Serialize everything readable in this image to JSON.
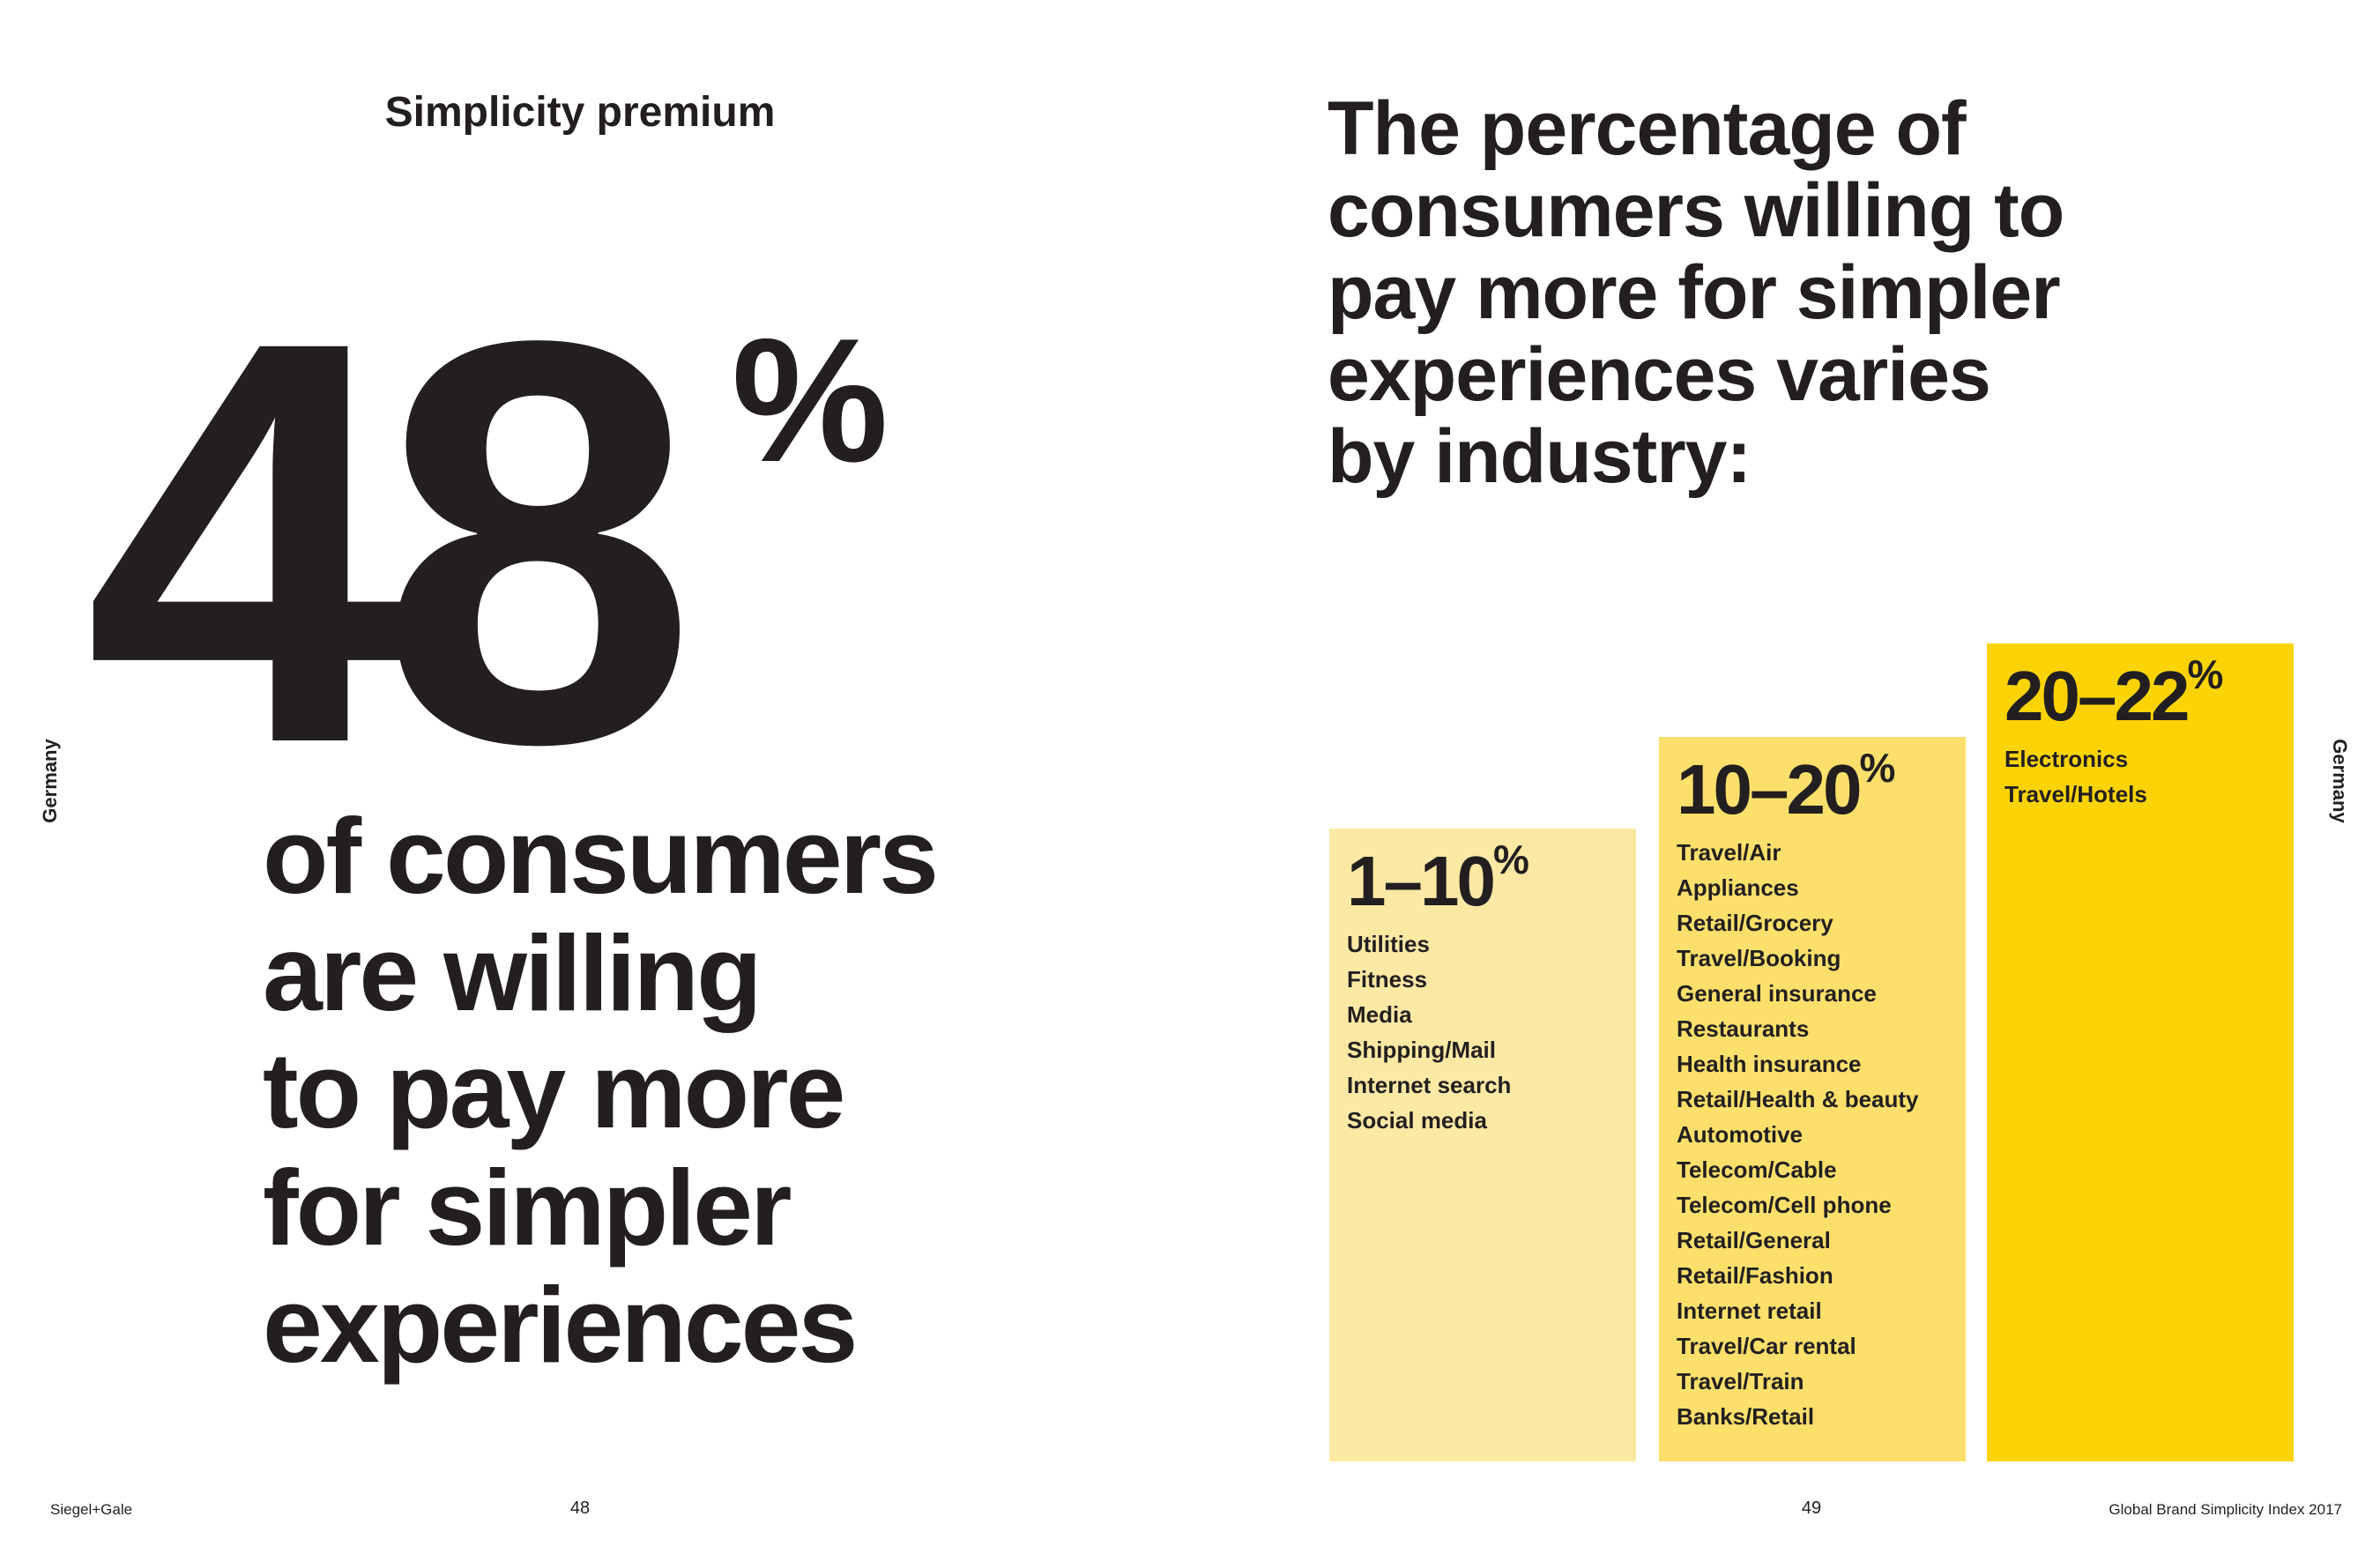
{
  "left_page": {
    "section_title": "Simplicity premium",
    "big_number": "48",
    "big_unit": "%",
    "statement": [
      "of consumers",
      "are willing",
      "to pay more",
      "for simpler",
      "experiences"
    ],
    "side_label": "Germany",
    "footer_brand": "Siegel+Gale",
    "page_number": "48"
  },
  "right_page": {
    "title": [
      "The percentage of",
      "consumers willing to",
      "pay more for simpler",
      "experiences varies",
      "by industry:"
    ],
    "side_label": "Germany",
    "page_number": "49",
    "footer_title": "Global Brand Simplicity Index 2017",
    "tiers": [
      {
        "range": "1–10",
        "unit": "%",
        "color": "#fde9a4",
        "industries": [
          "Utilities",
          "Fitness",
          "Media",
          "Shipping/Mail",
          "Internet search",
          "Social media"
        ]
      },
      {
        "range": "10–20",
        "unit": "%",
        "color": "#fde06b",
        "industries": [
          "Travel/Air",
          "Appliances",
          "Retail/Grocery",
          "Travel/Booking",
          "General insurance",
          "Restaurants",
          "Health insurance",
          "Retail/Health & beauty",
          "Automotive",
          "Telecom/Cable",
          "Telecom/Cell phone",
          "Retail/General",
          "Retail/Fashion",
          "Internet retail",
          "Travel/Car rental",
          "Travel/Train",
          "Banks/Retail"
        ]
      },
      {
        "range": "20–22",
        "unit": "%",
        "color": "#fcd405",
        "industries": [
          "Electronics",
          "Travel/Hotels"
        ]
      }
    ]
  }
}
